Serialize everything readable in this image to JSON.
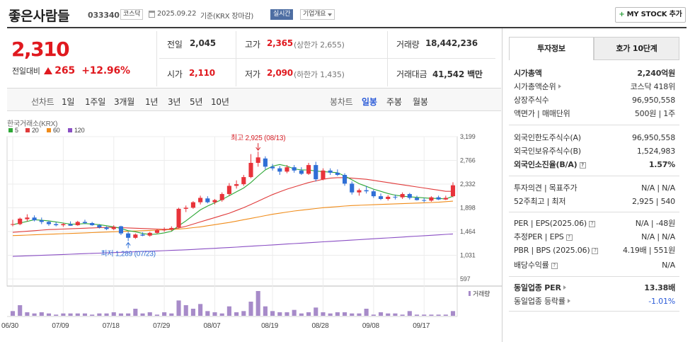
{
  "header": {
    "stock_name": "좋은사람들",
    "stock_code": "033340",
    "market": "코스닥",
    "date": "2025.09.22",
    "basis": "기준(KRX 장마감)",
    "realtime_label": "실시간",
    "company_info_label": "기업개요",
    "mystock_label": "MY STOCK 추가"
  },
  "price": {
    "current": "2,310",
    "change_label": "전일대비",
    "change": "265",
    "change_pct": "+12.96%"
  },
  "summary": {
    "prev_close_label": "전일",
    "prev_close": "2,045",
    "high_label": "고가",
    "high": "2,365",
    "upper_limit": "(상한가 2,655)",
    "volume_label": "거래량",
    "volume": "18,442,236",
    "open_label": "시가",
    "open": "2,110",
    "low_label": "저가",
    "low": "2,090",
    "lower_limit": "(하한가 1,435)",
    "amount_label": "거래대금",
    "amount": "41,542",
    "amount_unit": "백만"
  },
  "periods": {
    "line_chart_label": "선차트",
    "items": [
      "1일",
      "1주일",
      "3개월",
      "1년",
      "3년",
      "5년",
      "10년"
    ],
    "candle_label": "봉차트",
    "candle_items": [
      "일봉",
      "주봉",
      "월봉"
    ],
    "candle_active": "일봉"
  },
  "chart_data": {
    "type": "candlestick",
    "source": "한국거래소(KRX)",
    "ma_legend": [
      "5",
      "20",
      "60",
      "120"
    ],
    "ma_colors": [
      "#2ea836",
      "#e03b3b",
      "#f08c1a",
      "#8a4fc4"
    ],
    "y_ticks": [
      "3,199",
      "2,766",
      "2,332",
      "1,898",
      "1,464",
      "1,031",
      "597"
    ],
    "ylim": [
      597,
      3199
    ],
    "x_ticks": [
      "06/30",
      "07/09",
      "07/18",
      "07/29",
      "08/07",
      "08/19",
      "08/28",
      "09/08",
      "09/17"
    ],
    "x_tick_index": [
      0,
      7,
      14,
      21,
      28,
      36,
      43,
      50,
      57
    ],
    "max_annotation": "최고 2,925 (08/13)",
    "min_annotation": "최저 1,289 (07/23)",
    "volume_label": "거래량",
    "candles": [
      {
        "o": 1590,
        "h": 1680,
        "l": 1560,
        "c": 1600
      },
      {
        "o": 1600,
        "h": 1720,
        "l": 1580,
        "c": 1700
      },
      {
        "o": 1690,
        "h": 1780,
        "l": 1650,
        "c": 1720
      },
      {
        "o": 1720,
        "h": 1760,
        "l": 1650,
        "c": 1670
      },
      {
        "o": 1670,
        "h": 1720,
        "l": 1600,
        "c": 1640
      },
      {
        "o": 1640,
        "h": 1660,
        "l": 1570,
        "c": 1600
      },
      {
        "o": 1600,
        "h": 1640,
        "l": 1560,
        "c": 1580
      },
      {
        "o": 1580,
        "h": 1620,
        "l": 1550,
        "c": 1600
      },
      {
        "o": 1600,
        "h": 1650,
        "l": 1570,
        "c": 1570
      },
      {
        "o": 1580,
        "h": 1660,
        "l": 1570,
        "c": 1640
      },
      {
        "o": 1640,
        "h": 1680,
        "l": 1600,
        "c": 1620
      },
      {
        "o": 1620,
        "h": 1640,
        "l": 1570,
        "c": 1580
      },
      {
        "o": 1580,
        "h": 1600,
        "l": 1520,
        "c": 1540
      },
      {
        "o": 1540,
        "h": 1560,
        "l": 1490,
        "c": 1510
      },
      {
        "o": 1510,
        "h": 1580,
        "l": 1490,
        "c": 1550
      },
      {
        "o": 1560,
        "h": 1570,
        "l": 1400,
        "c": 1430
      },
      {
        "o": 1430,
        "h": 1460,
        "l": 1289,
        "c": 1350
      },
      {
        "o": 1350,
        "h": 1430,
        "l": 1330,
        "c": 1410
      },
      {
        "o": 1410,
        "h": 1450,
        "l": 1380,
        "c": 1390
      },
      {
        "o": 1390,
        "h": 1460,
        "l": 1370,
        "c": 1440
      },
      {
        "o": 1440,
        "h": 1510,
        "l": 1420,
        "c": 1490
      },
      {
        "o": 1490,
        "h": 1540,
        "l": 1460,
        "c": 1500
      },
      {
        "o": 1500,
        "h": 1560,
        "l": 1480,
        "c": 1530
      },
      {
        "o": 1540,
        "h": 1900,
        "l": 1520,
        "c": 1880
      },
      {
        "o": 1880,
        "h": 1940,
        "l": 1820,
        "c": 1900
      },
      {
        "o": 1900,
        "h": 2020,
        "l": 1880,
        "c": 2000
      },
      {
        "o": 2000,
        "h": 2120,
        "l": 1960,
        "c": 2080
      },
      {
        "o": 2070,
        "h": 2110,
        "l": 1980,
        "c": 2000
      },
      {
        "o": 2000,
        "h": 2060,
        "l": 1960,
        "c": 2040
      },
      {
        "o": 2040,
        "h": 2180,
        "l": 2010,
        "c": 2150
      },
      {
        "o": 2150,
        "h": 2350,
        "l": 2120,
        "c": 2300
      },
      {
        "o": 2300,
        "h": 2400,
        "l": 2250,
        "c": 2330
      },
      {
        "o": 2330,
        "h": 2500,
        "l": 2300,
        "c": 2460
      },
      {
        "o": 2460,
        "h": 2880,
        "l": 2440,
        "c": 2720
      },
      {
        "o": 2720,
        "h": 2925,
        "l": 2650,
        "c": 2820
      },
      {
        "o": 2800,
        "h": 2840,
        "l": 2600,
        "c": 2650
      },
      {
        "o": 2650,
        "h": 2700,
        "l": 2580,
        "c": 2620
      },
      {
        "o": 2620,
        "h": 2660,
        "l": 2500,
        "c": 2560
      },
      {
        "o": 2560,
        "h": 2680,
        "l": 2530,
        "c": 2640
      },
      {
        "o": 2640,
        "h": 2680,
        "l": 2540,
        "c": 2580
      },
      {
        "o": 2580,
        "h": 2640,
        "l": 2500,
        "c": 2520
      },
      {
        "o": 2520,
        "h": 2720,
        "l": 2500,
        "c": 2680
      },
      {
        "o": 2680,
        "h": 2740,
        "l": 2380,
        "c": 2420
      },
      {
        "o": 2420,
        "h": 2620,
        "l": 2400,
        "c": 2580
      },
      {
        "o": 2580,
        "h": 2620,
        "l": 2500,
        "c": 2540
      },
      {
        "o": 2540,
        "h": 2600,
        "l": 2480,
        "c": 2500
      },
      {
        "o": 2500,
        "h": 2530,
        "l": 2300,
        "c": 2340
      },
      {
        "o": 2340,
        "h": 2380,
        "l": 2140,
        "c": 2180
      },
      {
        "o": 2180,
        "h": 2250,
        "l": 2120,
        "c": 2220
      },
      {
        "o": 2220,
        "h": 2300,
        "l": 2160,
        "c": 2200
      },
      {
        "o": 2200,
        "h": 2230,
        "l": 2080,
        "c": 2110
      },
      {
        "o": 2110,
        "h": 2160,
        "l": 2040,
        "c": 2060
      },
      {
        "o": 2060,
        "h": 2130,
        "l": 2030,
        "c": 2100
      },
      {
        "o": 2100,
        "h": 2140,
        "l": 2050,
        "c": 2090
      },
      {
        "o": 2090,
        "h": 2180,
        "l": 2060,
        "c": 2150
      },
      {
        "o": 2150,
        "h": 2170,
        "l": 2050,
        "c": 2080
      },
      {
        "o": 2080,
        "h": 2120,
        "l": 2030,
        "c": 2040
      },
      {
        "o": 2040,
        "h": 2080,
        "l": 2000,
        "c": 2030
      },
      {
        "o": 2030,
        "h": 2110,
        "l": 2010,
        "c": 2090
      },
      {
        "o": 2090,
        "h": 2120,
        "l": 2040,
        "c": 2050
      },
      {
        "o": 2050,
        "h": 2120,
        "l": 2040,
        "c": 2080
      },
      {
        "o": 2110,
        "h": 2365,
        "l": 2090,
        "c": 2310
      }
    ],
    "ma5": [
      1590,
      1620,
      1650,
      1680,
      1670,
      1660,
      1640,
      1620,
      1600,
      1600,
      1610,
      1600,
      1590,
      1570,
      1550,
      1520,
      1480,
      1460,
      1430,
      1410,
      1420,
      1440,
      1470,
      1570,
      1660,
      1760,
      1860,
      1930,
      1990,
      2050,
      2120,
      2190,
      2260,
      2360,
      2480,
      2590,
      2660,
      2690,
      2660,
      2610,
      2590,
      2590,
      2570,
      2560,
      2550,
      2540,
      2480,
      2410,
      2340,
      2290,
      2240,
      2200,
      2160,
      2130,
      2110,
      2100,
      2090,
      2080,
      2070,
      2070,
      2060,
      2110
    ],
    "ma20": [
      1450,
      1460,
      1470,
      1480,
      1490,
      1500,
      1505,
      1510,
      1515,
      1520,
      1525,
      1530,
      1535,
      1540,
      1540,
      1535,
      1530,
      1525,
      1520,
      1515,
      1510,
      1505,
      1510,
      1530,
      1560,
      1600,
      1640,
      1680,
      1720,
      1760,
      1800,
      1850,
      1900,
      1960,
      2020,
      2080,
      2140,
      2190,
      2240,
      2280,
      2320,
      2360,
      2390,
      2420,
      2440,
      2450,
      2450,
      2440,
      2430,
      2420,
      2400,
      2380,
      2360,
      2340,
      2320,
      2300,
      2280,
      2260,
      2240,
      2220,
      2200,
      2200
    ],
    "ma60": [
      1390,
      1395,
      1400,
      1405,
      1410,
      1415,
      1420,
      1425,
      1430,
      1435,
      1440,
      1445,
      1450,
      1455,
      1460,
      1465,
      1470,
      1475,
      1480,
      1485,
      1490,
      1495,
      1500,
      1510,
      1520,
      1535,
      1550,
      1570,
      1590,
      1610,
      1630,
      1655,
      1680,
      1705,
      1730,
      1755,
      1780,
      1800,
      1820,
      1840,
      1855,
      1870,
      1885,
      1900,
      1910,
      1920,
      1930,
      1940,
      1945,
      1950,
      1955,
      1960,
      1965,
      1970,
      1975,
      1980,
      1985,
      1990,
      1995,
      2000,
      2010,
      2020
    ],
    "ma120": [
      1010,
      1015,
      1020,
      1025,
      1030,
      1035,
      1040,
      1045,
      1050,
      1055,
      1060,
      1065,
      1070,
      1075,
      1080,
      1085,
      1090,
      1095,
      1100,
      1105,
      1110,
      1115,
      1120,
      1125,
      1130,
      1137,
      1144,
      1151,
      1158,
      1165,
      1172,
      1180,
      1188,
      1196,
      1204,
      1212,
      1220,
      1228,
      1236,
      1244,
      1252,
      1260,
      1268,
      1276,
      1284,
      1292,
      1300,
      1308,
      1316,
      1324,
      1332,
      1340,
      1348,
      1356,
      1364,
      1372,
      1380,
      1388,
      1396,
      1404,
      1412,
      1420
    ],
    "volumes": [
      4,
      9,
      3,
      2,
      3,
      2,
      1,
      2,
      2,
      2,
      2,
      1,
      2,
      2,
      3,
      2,
      2,
      6,
      2,
      3,
      1,
      3,
      2,
      13,
      9,
      6,
      10,
      4,
      3,
      2,
      8,
      3,
      4,
      12,
      21,
      8,
      4,
      3,
      3,
      5,
      2,
      3,
      7,
      3,
      2,
      3,
      3,
      2,
      2,
      6,
      1,
      3,
      2,
      2,
      1,
      4,
      1,
      1,
      1,
      1,
      1,
      4
    ]
  },
  "tabs": {
    "active": "투자정보",
    "inactive": "호가 10단계"
  },
  "invest": {
    "market_cap_label": "시가총액",
    "market_cap": "2,240억원",
    "rank_label": "시가총액순위",
    "rank": "코스닥 418위",
    "shares_label": "상장주식수",
    "shares": "96,950,558",
    "par_label": "액면가 | 매매단위",
    "par": "500원 | 1주",
    "foreign_limit_label": "외국인한도주식수(A)",
    "foreign_limit": "96,950,558",
    "foreign_hold_label": "외국인보유주식수(B)",
    "foreign_hold": "1,524,983",
    "foreign_ratio_label": "외국인소진율(B/A)",
    "foreign_ratio": "1.57%",
    "opinion_label": "투자의견 | 목표주가",
    "opinion": "N/A | N/A",
    "week52_label": "52주최고 | 최저",
    "week52": "2,925 | 540",
    "per_label": "PER | EPS(2025.06)",
    "per": "N/A | -48원",
    "est_per_label": "추정PER | EPS",
    "est_per": "N/A | N/A",
    "pbr_label": "PBR | BPS (2025.06)",
    "pbr": "4.19배 | 551원",
    "div_label": "배당수익률",
    "div": "N/A",
    "sector_per_label": "동일업종 PER",
    "sector_per": "13.38배",
    "sector_rate_label": "동일업종 등락률",
    "sector_rate": "-1.01%"
  }
}
